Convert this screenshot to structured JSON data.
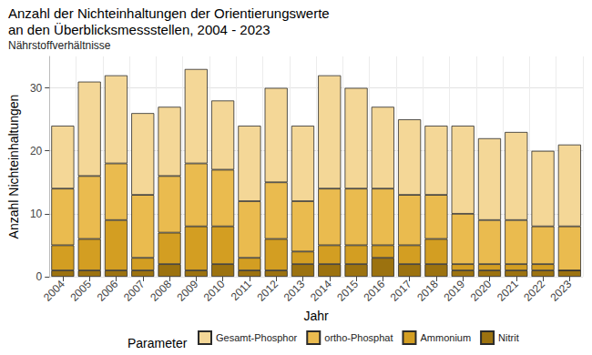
{
  "chart_data": {
    "type": "bar",
    "title": "Anzahl der Nichteinhaltungen der Orientierungswerte\nan den Überblicksmessstellen, 2004 - 2023",
    "subtitle": "Nährstoffverhältnisse",
    "x_label": "Jahr",
    "y_label": "Anzahl Nichteinhaltungen",
    "legend_title": "Parameter",
    "legend": "bottom",
    "stacked": true,
    "grid": true,
    "data_labels": false,
    "categories": [
      "2004",
      "2005",
      "2006",
      "2007",
      "2008",
      "2009",
      "2010",
      "2011",
      "2012",
      "2013",
      "2014",
      "2015",
      "2016",
      "2017",
      "2018",
      "2019",
      "2020",
      "2021",
      "2022",
      "2023"
    ],
    "series": [
      {
        "name": "Gesamt-Phosphor",
        "color": "#f4d797",
        "values": [
          10,
          15,
          14,
          13,
          11,
          15,
          11,
          12,
          15,
          12,
          18,
          16,
          13,
          12,
          11,
          14,
          13,
          14,
          12,
          13
        ]
      },
      {
        "name": "ortho-Phosphat",
        "color": "#eabb4f",
        "values": [
          9,
          10,
          9,
          10,
          9,
          10,
          9,
          9,
          9,
          8,
          9,
          9,
          9,
          8,
          7,
          8,
          7,
          7,
          6,
          7
        ]
      },
      {
        "name": "Ammonium",
        "color": "#d39e22",
        "values": [
          4,
          5,
          8,
          2,
          5,
          7,
          6,
          2,
          5,
          2,
          3,
          3,
          2,
          3,
          4,
          1,
          1,
          1,
          1,
          0
        ]
      },
      {
        "name": "Nitrit",
        "color": "#9c720f",
        "values": [
          1,
          1,
          1,
          1,
          2,
          1,
          2,
          1,
          1,
          2,
          2,
          2,
          3,
          2,
          2,
          1,
          1,
          1,
          1,
          1
        ]
      }
    ],
    "ylim": [
      0,
      35
    ],
    "yticks": [
      0,
      10,
      20,
      30
    ]
  }
}
